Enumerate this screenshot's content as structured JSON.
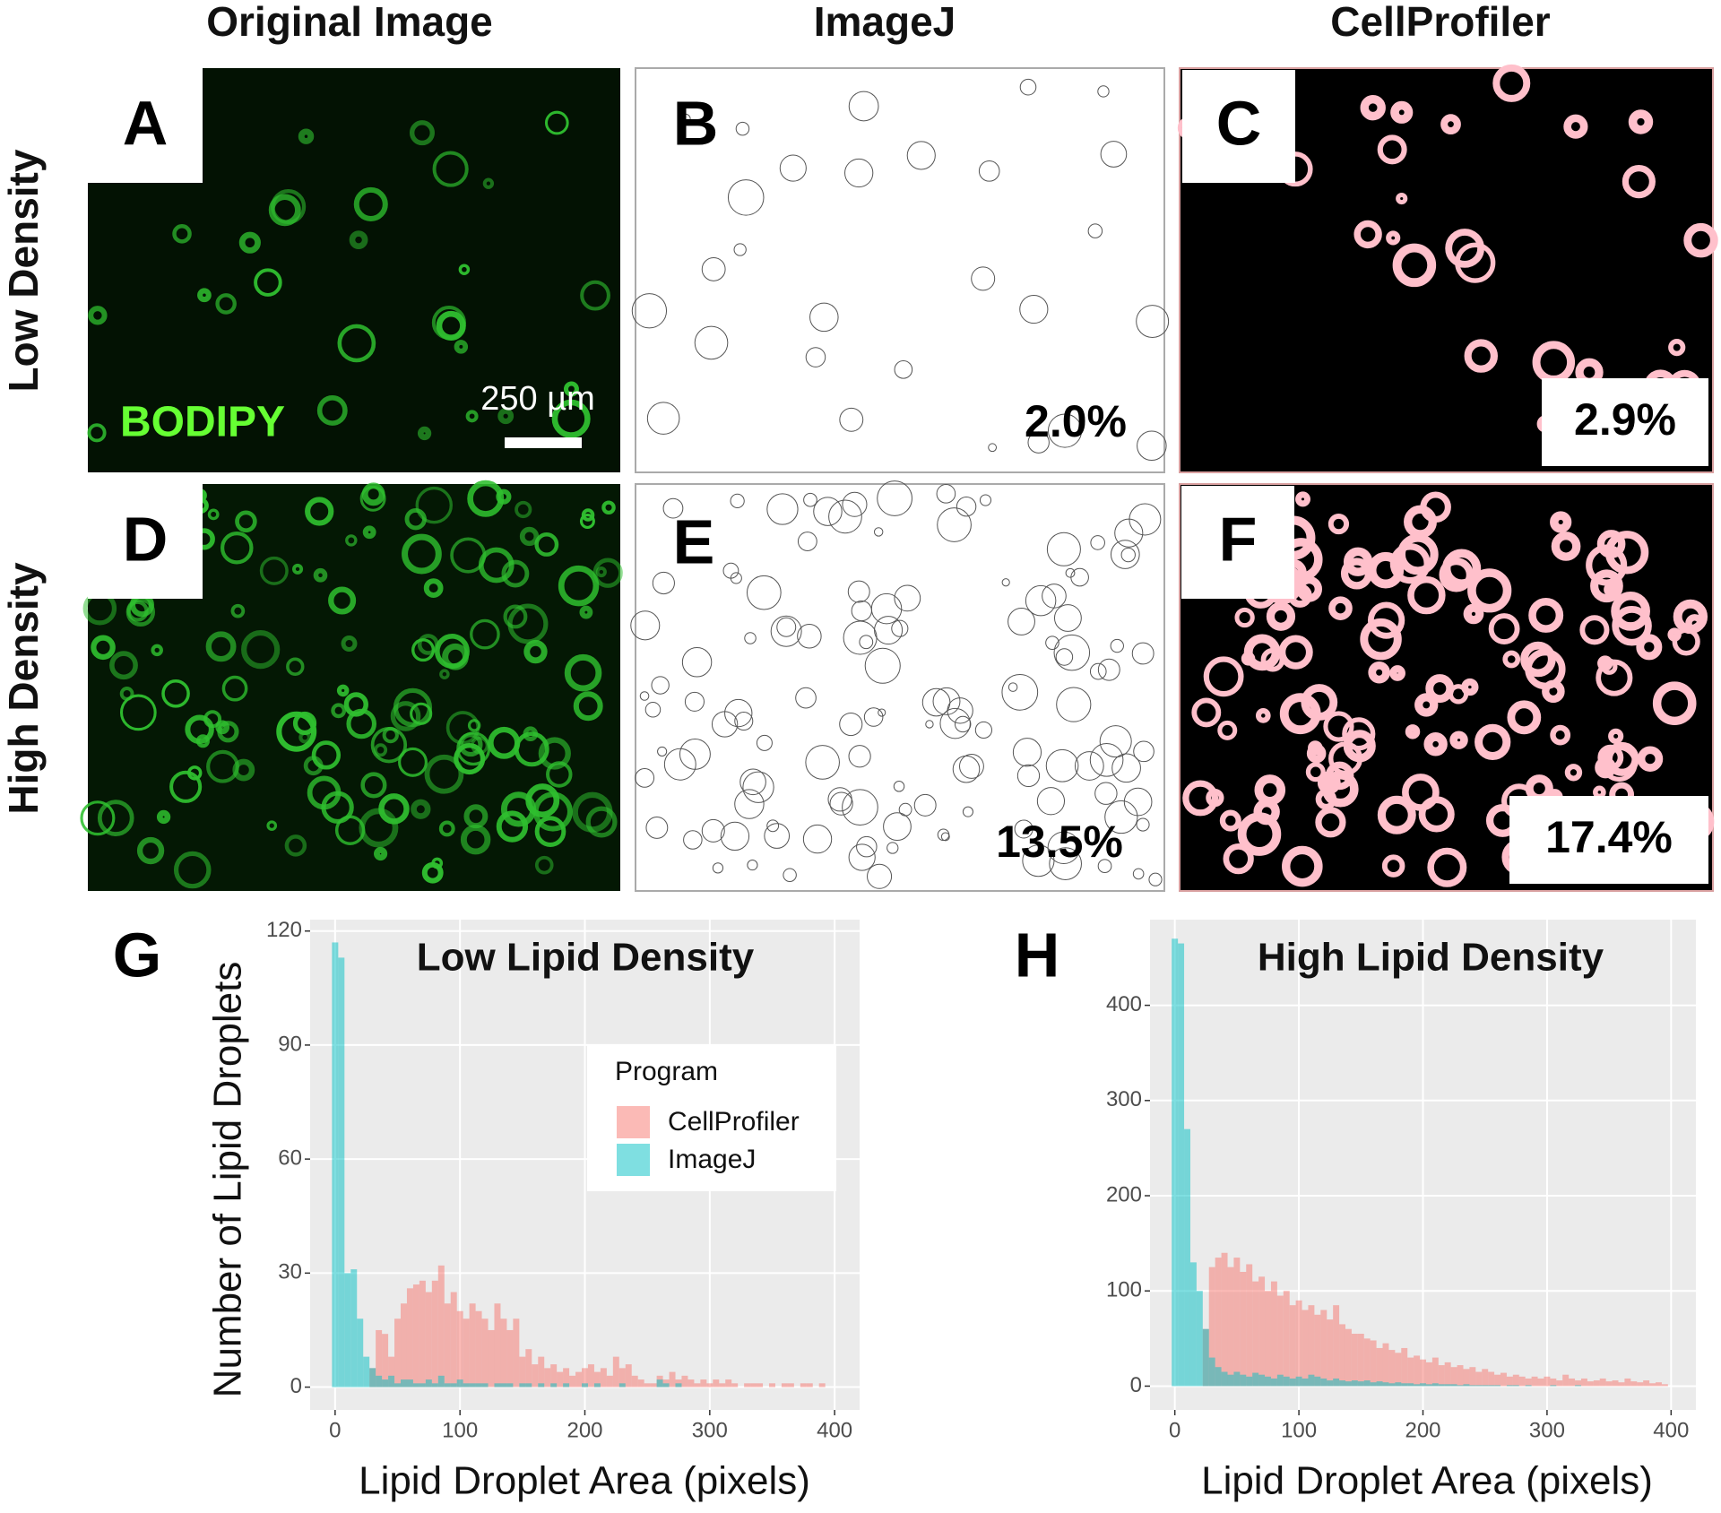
{
  "panels": {
    "headers": [
      "Original Image",
      "ImageJ",
      "CellProfiler"
    ],
    "rows": [
      "Low Density",
      "High Density"
    ],
    "letters": [
      "A",
      "B",
      "C",
      "D",
      "E",
      "F"
    ],
    "stain": "BODIPY",
    "scale_bar": "250 µm",
    "percentages": [
      "2.0%",
      "2.9%",
      "13.5%",
      "17.4%"
    ]
  },
  "chart_data": [
    {
      "type": "histogram",
      "panel": "G",
      "title": "Low Lipid Density",
      "xlabel": "Lipid Droplet Area (pixels)",
      "ylabel": "Number of Lipid Droplets",
      "bins": [
        -2.5,
        2.5,
        7.5,
        12.5,
        17.5,
        22.5,
        27.5,
        32.5,
        37.5,
        42.5,
        47.5,
        52.5,
        57.5,
        62.5,
        67.5,
        72.5,
        77.5,
        82.5,
        87.5,
        92.5,
        97.5,
        102.5,
        107.5,
        112.5,
        117.5,
        122.5,
        127.5,
        132.5,
        137.5,
        142.5,
        147.5,
        152.5,
        157.5,
        162.5,
        167.5,
        172.5,
        177.5,
        182.5,
        187.5,
        192.5,
        197.5,
        202.5,
        207.5,
        212.5,
        217.5,
        222.5,
        227.5,
        232.5,
        237.5,
        242.5,
        247.5,
        252.5,
        257.5,
        262.5,
        267.5,
        272.5,
        277.5,
        282.5,
        287.5,
        292.5,
        297.5,
        302.5,
        307.5,
        312.5,
        317.5,
        322.5,
        327.5,
        332.5,
        337.5,
        342.5,
        347.5,
        352.5,
        357.5,
        362.5,
        367.5,
        372.5,
        377.5,
        382.5,
        387.5,
        392.5,
        397.5
      ],
      "series": [
        {
          "name": "CellProfiler",
          "color": "#f8766d",
          "values": [
            0,
            0,
            0,
            0,
            0,
            0,
            5,
            15,
            14,
            8,
            18,
            22,
            26,
            27,
            28,
            25,
            28,
            32,
            22,
            25,
            20,
            18,
            22,
            20,
            18,
            15,
            22,
            18,
            15,
            18,
            8,
            10,
            6,
            8,
            5,
            6,
            4,
            5,
            3,
            4,
            5,
            6,
            4,
            5,
            3,
            8,
            5,
            6,
            3,
            2,
            1,
            1,
            3,
            2,
            4,
            2,
            3,
            2,
            1,
            2,
            1,
            2,
            1,
            2,
            1,
            0,
            1,
            1,
            1,
            0,
            1,
            0,
            1,
            1,
            0,
            1,
            1,
            0,
            1,
            0
          ]
        },
        {
          "name": "ImageJ",
          "color": "#00bfc4",
          "values": [
            117,
            113,
            30,
            31,
            18,
            8,
            5,
            3,
            2,
            3,
            1,
            2,
            2,
            1,
            1,
            2,
            1,
            3,
            1,
            1,
            2,
            1,
            1,
            1,
            1,
            0,
            1,
            1,
            1,
            0,
            1,
            1,
            0,
            1,
            0,
            1,
            0,
            1,
            0,
            0,
            1,
            0,
            1,
            0,
            0,
            0,
            1,
            0,
            0,
            0,
            0,
            0,
            2,
            1,
            0,
            1,
            0,
            0,
            0,
            0,
            0,
            0,
            0,
            0,
            0,
            0,
            0,
            0,
            0,
            0,
            0,
            0,
            0,
            0,
            0,
            0,
            0,
            0,
            0,
            0
          ]
        }
      ],
      "xlim": [
        -20,
        420
      ],
      "ylim": [
        -6,
        123
      ],
      "xticks": [
        0,
        100,
        200,
        300,
        400
      ],
      "yticks": [
        0,
        30,
        60,
        90,
        120
      ],
      "grid": true,
      "legend": "right",
      "legend_title": "Program"
    },
    {
      "type": "histogram",
      "panel": "H",
      "title": "High Lipid Density",
      "xlabel": "Lipid Droplet Area (pixels)",
      "bins": [
        -2.5,
        2.5,
        7.5,
        12.5,
        17.5,
        22.5,
        27.5,
        32.5,
        37.5,
        42.5,
        47.5,
        52.5,
        57.5,
        62.5,
        67.5,
        72.5,
        77.5,
        82.5,
        87.5,
        92.5,
        97.5,
        102.5,
        107.5,
        112.5,
        117.5,
        122.5,
        127.5,
        132.5,
        137.5,
        142.5,
        147.5,
        152.5,
        157.5,
        162.5,
        167.5,
        172.5,
        177.5,
        182.5,
        187.5,
        192.5,
        197.5,
        202.5,
        207.5,
        212.5,
        217.5,
        222.5,
        227.5,
        232.5,
        237.5,
        242.5,
        247.5,
        252.5,
        257.5,
        262.5,
        267.5,
        272.5,
        277.5,
        282.5,
        287.5,
        292.5,
        297.5,
        302.5,
        307.5,
        312.5,
        317.5,
        322.5,
        327.5,
        332.5,
        337.5,
        342.5,
        347.5,
        352.5,
        357.5,
        362.5,
        367.5,
        372.5,
        377.5,
        382.5,
        387.5,
        392.5,
        397.5
      ],
      "series": [
        {
          "color": "#f8766d",
          "values": [
            0,
            0,
            0,
            0,
            0,
            60,
            125,
            135,
            140,
            125,
            135,
            120,
            128,
            110,
            115,
            100,
            110,
            95,
            100,
            85,
            90,
            80,
            85,
            75,
            80,
            70,
            85,
            65,
            60,
            55,
            55,
            50,
            48,
            40,
            45,
            38,
            35,
            40,
            30,
            32,
            28,
            25,
            30,
            22,
            25,
            20,
            22,
            18,
            20,
            15,
            18,
            15,
            12,
            14,
            10,
            12,
            10,
            8,
            10,
            8,
            10,
            8,
            6,
            12,
            8,
            6,
            8,
            5,
            6,
            8,
            5,
            6,
            4,
            8,
            5,
            4,
            6,
            3,
            4,
            2
          ]
        },
        {
          "color": "#00bfc4",
          "values": [
            470,
            465,
            270,
            130,
            100,
            60,
            30,
            20,
            15,
            12,
            15,
            12,
            10,
            14,
            12,
            10,
            8,
            12,
            10,
            8,
            10,
            8,
            12,
            10,
            8,
            6,
            8,
            6,
            5,
            6,
            5,
            6,
            4,
            5,
            4,
            3,
            4,
            3,
            3,
            2,
            3,
            2,
            3,
            2,
            2,
            2,
            1,
            2,
            1,
            1,
            1,
            1,
            1,
            0,
            1,
            1,
            0,
            1,
            0,
            0,
            0,
            1,
            0,
            0,
            0,
            1,
            0,
            0,
            0,
            0,
            0,
            0,
            0,
            0,
            0,
            0,
            0,
            0,
            0,
            0
          ]
        }
      ],
      "xlim": [
        -20,
        420
      ],
      "ylim": [
        -25,
        490
      ],
      "xticks": [
        0,
        100,
        200,
        300,
        400
      ],
      "yticks": [
        0,
        100,
        200,
        300,
        400
      ],
      "grid": true
    }
  ]
}
